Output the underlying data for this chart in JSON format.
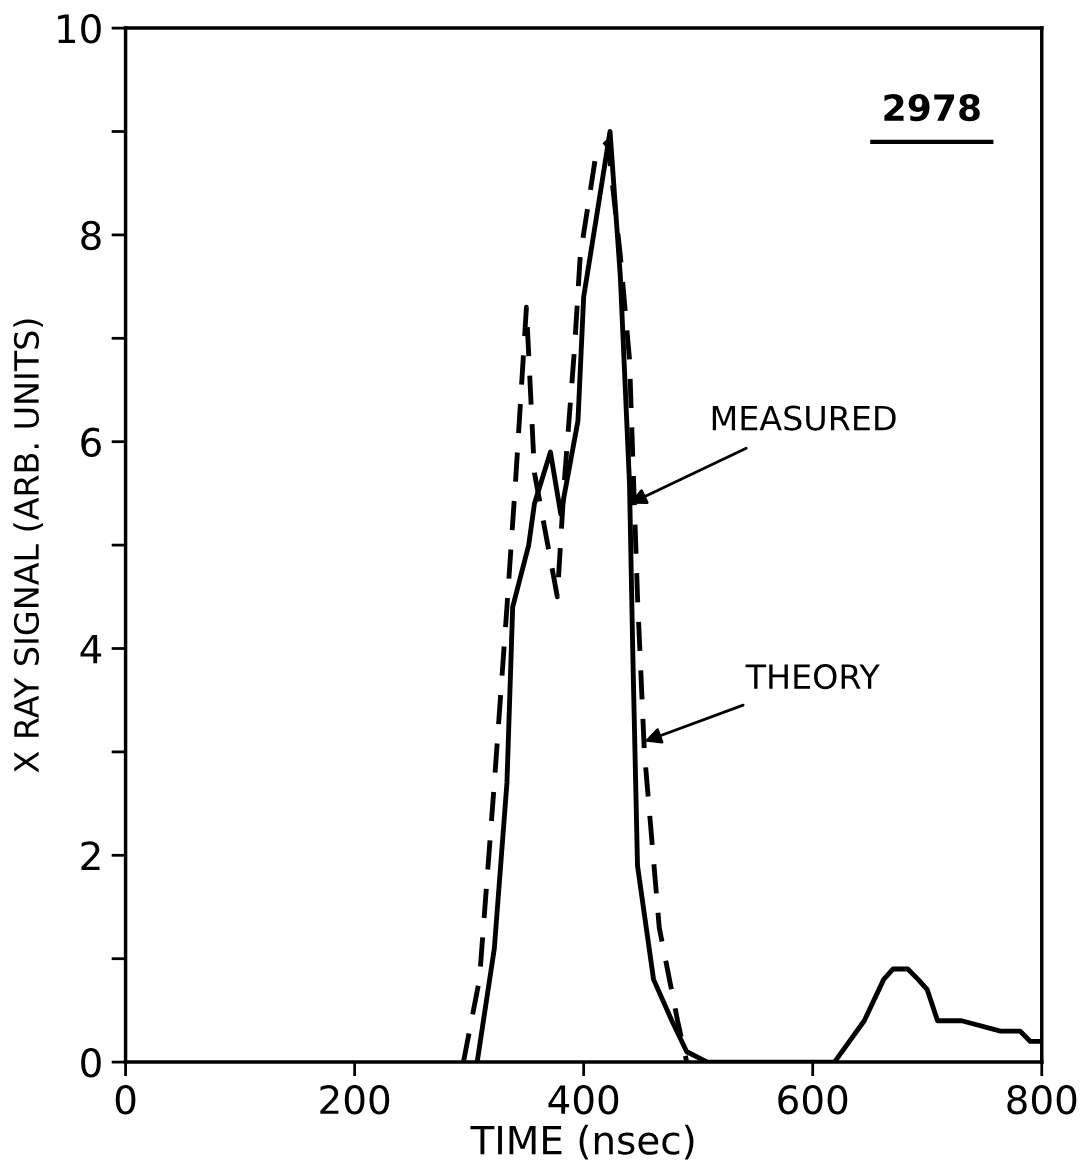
{
  "chart_data": {
    "type": "line",
    "xlabel": "TIME (nsec)",
    "ylabel": "X RAY SIGNAL (ARB. UNITS)",
    "xlim": [
      0,
      800
    ],
    "ylim": [
      0,
      10
    ],
    "xticks": [
      0,
      200,
      400,
      600,
      800
    ],
    "yticks": [
      0,
      {
        "value": 1,
        "label": null
      },
      2,
      {
        "value": 3,
        "label": null
      },
      4,
      {
        "value": 5,
        "label": null
      },
      6,
      {
        "value": 7,
        "label": null
      },
      8,
      {
        "value": 9,
        "label": null
      },
      10
    ],
    "grid": false,
    "marker": "none",
    "series": [
      {
        "color": "#000000",
        "line_style": "solid",
        "x": [
          307,
          322,
          333,
          338,
          352,
          357,
          371,
          380,
          395,
          400,
          413,
          423,
          432,
          440,
          443,
          447,
          461,
          477,
          490,
          508,
          619,
          645,
          662,
          670,
          683,
          692,
          700,
          709,
          730,
          764,
          781,
          790,
          798
        ],
        "values": [
          0,
          1.1,
          2.7,
          4.4,
          5.0,
          5.4,
          5.9,
          5.3,
          6.2,
          7.4,
          8.3,
          9.0,
          7.6,
          5.6,
          3.9,
          1.9,
          0.8,
          0.4,
          0.1,
          0,
          0,
          0.4,
          0.8,
          0.9,
          0.9,
          0.8,
          0.7,
          0.4,
          0.4,
          0.3,
          0.3,
          0.2,
          0.2
        ]
      },
      {
        "color": "#000000",
        "line_style": "dashed",
        "x": [
          295,
          309,
          322,
          333,
          341,
          350,
          357,
          377,
          383,
          392,
          397,
          411,
          421,
          432,
          440,
          447,
          453,
          466,
          482,
          490
        ],
        "values": [
          0,
          0.8,
          2.7,
          4.4,
          5.7,
          7.3,
          5.7,
          4.5,
          5.6,
          6.9,
          7.8,
          8.8,
          8.9,
          7.8,
          6.8,
          4.5,
          3.0,
          1.3,
          0.4,
          0
        ]
      }
    ],
    "annotations": [
      "2978",
      {
        "text": "MEASURED",
        "x": 440,
        "y": 5.4
      },
      {
        "text": "THEORY",
        "x": 453,
        "y": 3.1
      }
    ]
  }
}
